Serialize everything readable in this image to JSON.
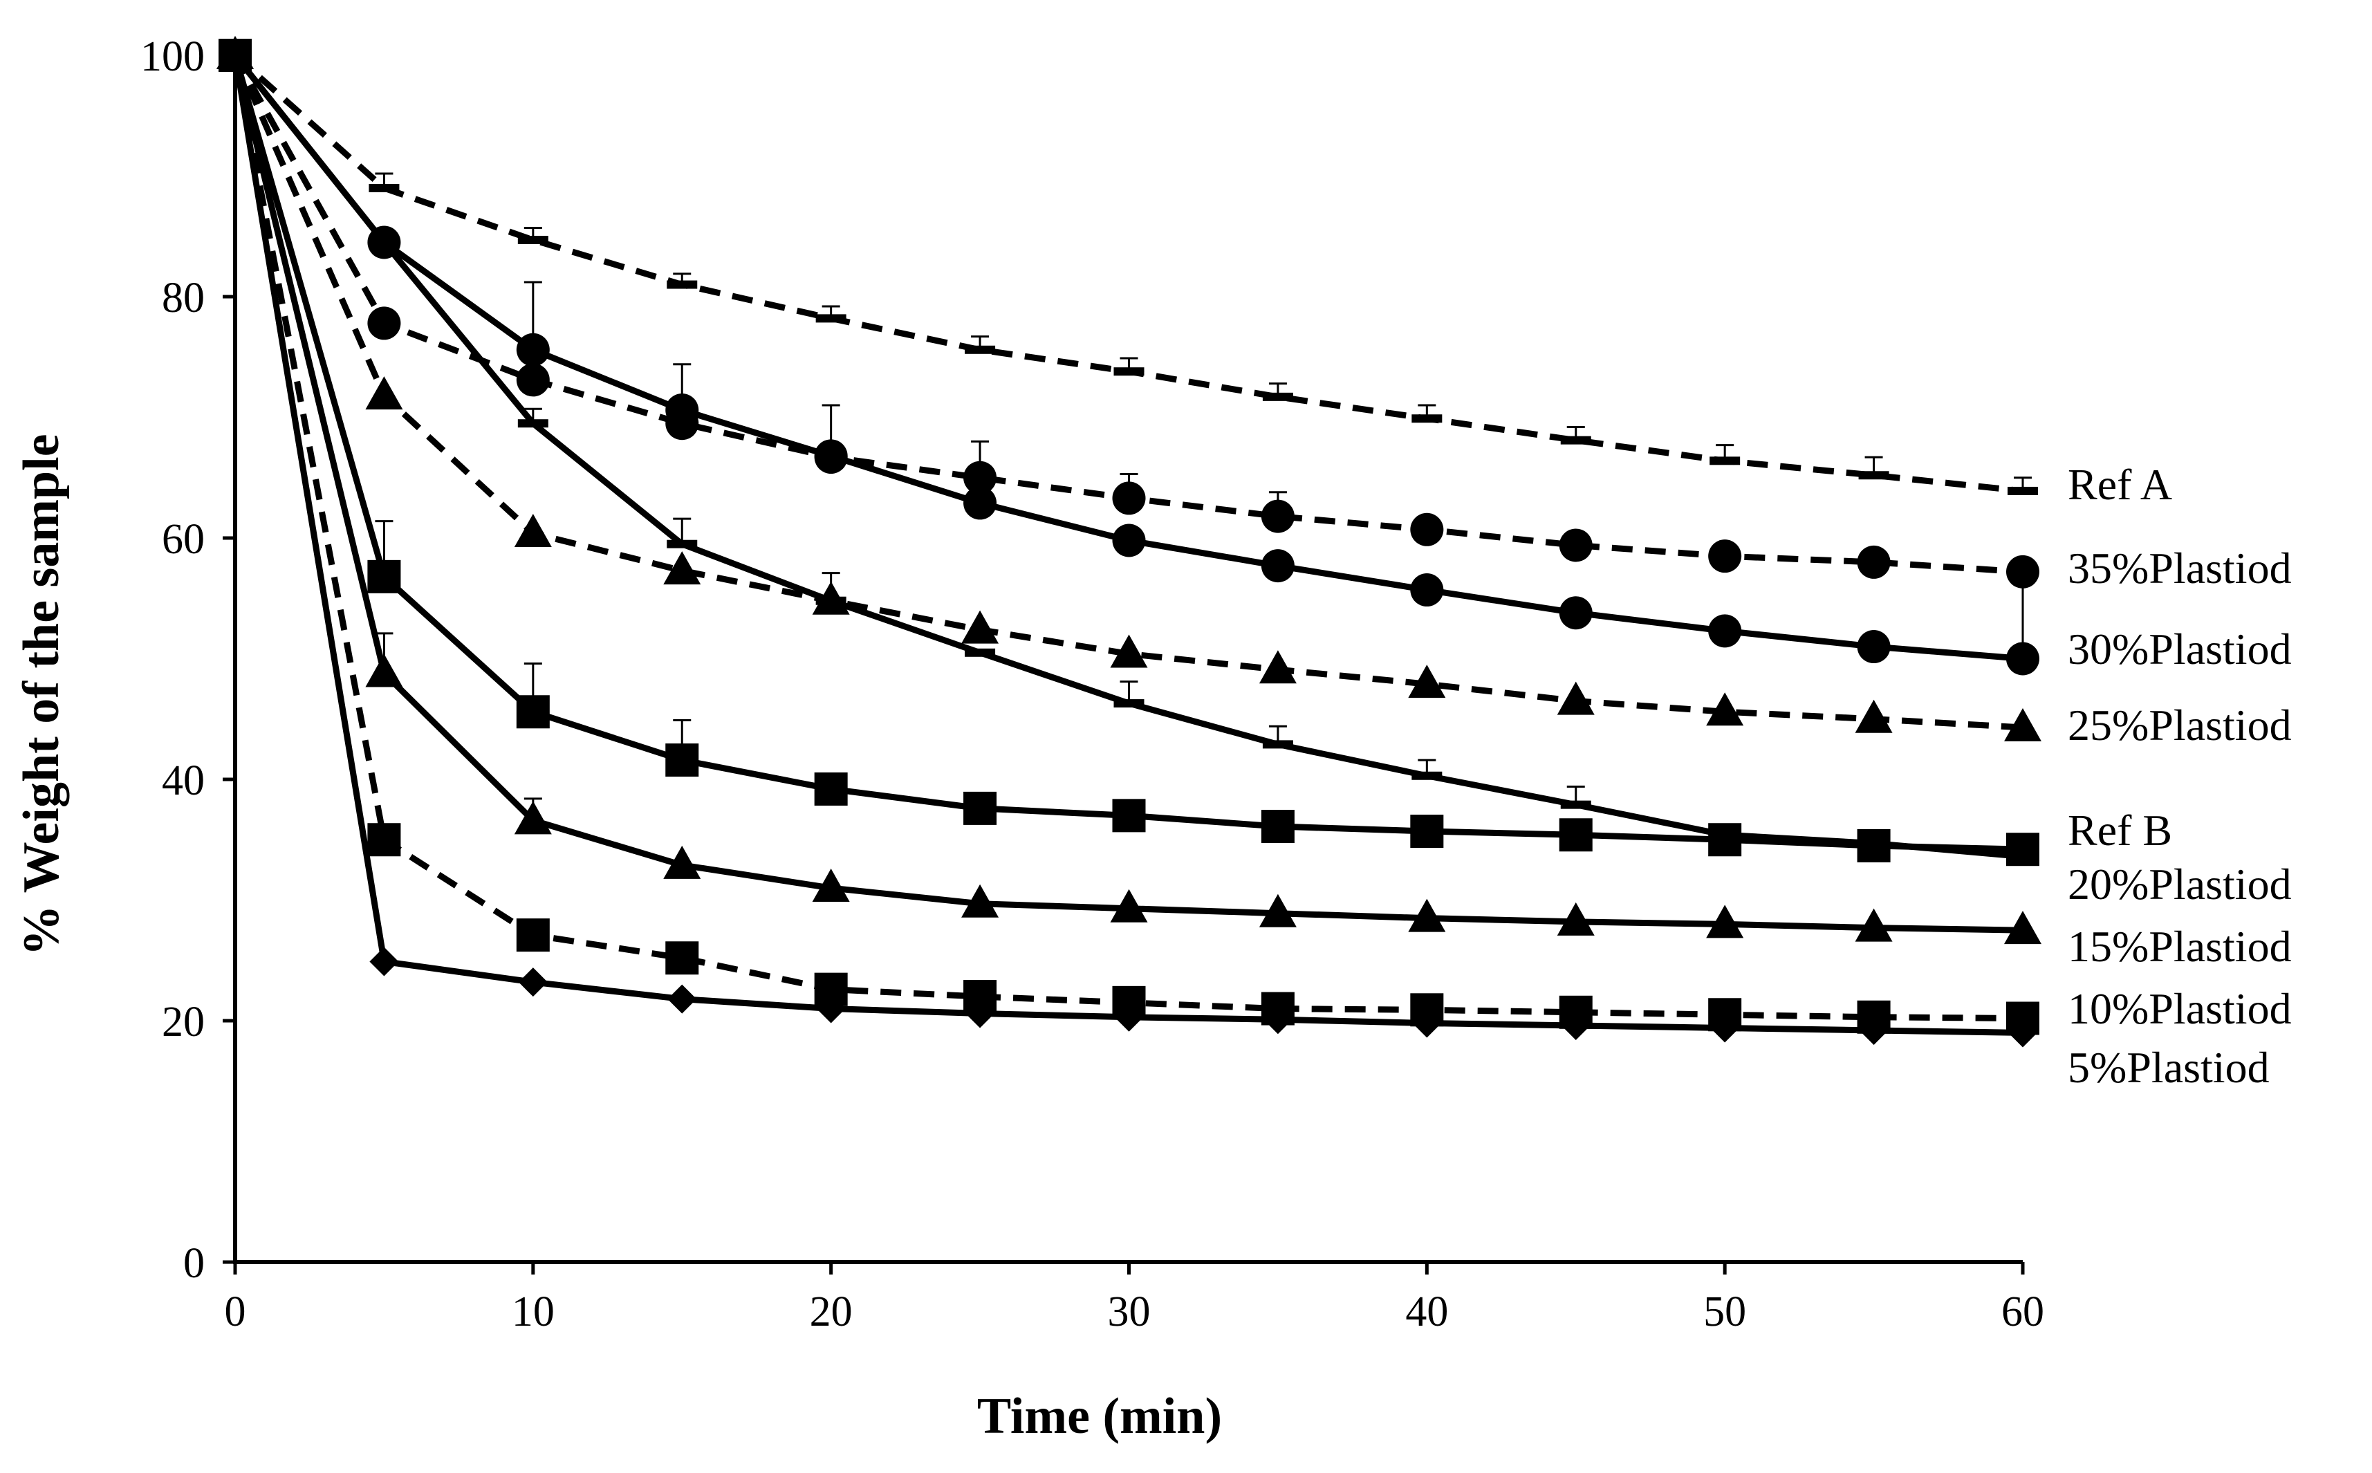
{
  "chart_data": {
    "type": "line",
    "title": "",
    "xlabel": "Time  (min)",
    "ylabel": "% Weight of the sample",
    "xlim": [
      0,
      60
    ],
    "ylim": [
      0,
      100
    ],
    "xticks": [
      0,
      10,
      20,
      30,
      40,
      50,
      60
    ],
    "yticks": [
      0,
      20,
      40,
      60,
      80,
      100
    ],
    "grid": false,
    "legend": "inline labels at right end of each line",
    "x": [
      0,
      5,
      10,
      15,
      20,
      25,
      30,
      35,
      40,
      45,
      50,
      55,
      60
    ],
    "series": [
      {
        "name": "Ref A",
        "label": "Ref A",
        "line_style": "dashed",
        "marker": "dash",
        "values": [
          100,
          89,
          84.7,
          81,
          78.2,
          75.6,
          73.8,
          71.7,
          69.9,
          68.1,
          66.4,
          65.2,
          63.9
        ],
        "errors": [
          0,
          1.2,
          1,
          0.9,
          1,
          1.1,
          1.1,
          1.1,
          1.1,
          1.1,
          1.3,
          1.5,
          1.1
        ]
      },
      {
        "name": "35%Plastiod",
        "label": "35%Plastiod",
        "line_style": "dashed",
        "marker": "circle",
        "values": [
          100,
          77.8,
          73.1,
          69.5,
          66.7,
          65,
          63.3,
          61.8,
          60.7,
          59.4,
          58.5,
          58,
          57.2
        ],
        "errors": [
          0,
          0,
          0,
          0,
          0,
          3,
          2,
          2,
          0,
          0,
          0,
          0,
          0
        ]
      },
      {
        "name": "30%Plastiod",
        "label": "30%Plastiod",
        "line_style": "solid",
        "marker": "circle",
        "values": [
          100,
          84.5,
          75.6,
          70.6,
          66.8,
          62.9,
          59.8,
          57.7,
          55.7,
          53.8,
          52.3,
          51,
          50
        ],
        "errors": [
          0,
          0,
          5.6,
          3.8,
          4.2,
          0,
          0,
          0,
          0,
          0,
          0,
          0,
          7.2
        ]
      },
      {
        "name": "Ref B",
        "label": "Ref B",
        "line_style": "solid",
        "marker": "dash",
        "values": [
          100,
          84.5,
          69.5,
          59.5,
          54.8,
          50.5,
          46.3,
          42.9,
          40.3,
          37.9,
          35.4,
          34.7,
          33.6
        ],
        "errors": [
          0,
          0,
          1.2,
          2.1,
          2.3,
          0,
          1.8,
          1.5,
          1.3,
          1.5,
          0,
          0,
          0
        ]
      },
      {
        "name": "25%Plastiod",
        "label": "25%Plastiod",
        "line_style": "dashed",
        "marker": "triangle",
        "values": [
          100,
          71.8,
          60.4,
          57.3,
          54.8,
          52.4,
          50.4,
          49.1,
          47.9,
          46.5,
          45.6,
          45,
          44.3
        ],
        "errors": [
          0,
          0,
          0,
          0,
          0,
          0,
          0,
          0,
          0,
          0,
          0,
          0,
          0
        ]
      },
      {
        "name": "20%Plastiod",
        "label": "20%Plastiod",
        "line_style": "solid",
        "marker": "square",
        "values": [
          100,
          56.8,
          45.6,
          41.6,
          39.2,
          37.6,
          37,
          36.1,
          35.7,
          35.4,
          35,
          34.5,
          34.2
        ],
        "errors": [
          0,
          4.6,
          4,
          3.3,
          0,
          0,
          0,
          0,
          0,
          0,
          0,
          0,
          0
        ]
      },
      {
        "name": "15%Plastiod",
        "label": "15%Plastiod",
        "line_style": "solid",
        "marker": "triangle",
        "values": [
          100,
          48.8,
          36.6,
          32.9,
          31,
          29.7,
          29.3,
          28.9,
          28.5,
          28.2,
          28,
          27.7,
          27.5
        ],
        "errors": [
          0,
          3.3,
          1.8,
          0,
          0,
          0,
          0,
          0,
          0,
          0,
          0,
          0,
          0
        ]
      },
      {
        "name": "10%Plastiod",
        "label": "10%Plastiod",
        "line_style": "dashed",
        "marker": "square",
        "values": [
          100,
          35,
          27.1,
          25.2,
          22.6,
          22,
          21.5,
          21,
          20.9,
          20.7,
          20.5,
          20.3,
          20.2
        ],
        "errors": [
          0,
          0,
          0,
          0,
          0,
          0,
          0,
          0,
          0,
          0,
          0,
          0,
          0
        ]
      },
      {
        "name": "5%Plastiod",
        "label": "5%Plastiod",
        "line_style": "solid",
        "marker": "diamond",
        "values": [
          100,
          24.9,
          23.2,
          21.8,
          21,
          20.6,
          20.3,
          20.1,
          19.8,
          19.6,
          19.4,
          19.2,
          19
        ],
        "errors": [
          0,
          0,
          0,
          0,
          0,
          0,
          0,
          0,
          0,
          0,
          0,
          0,
          0
        ]
      }
    ]
  },
  "series_label_order": [
    "Ref A",
    "35%Plastiod",
    "30%Plastiod",
    "25%Plastiod",
    "Ref B",
    "20%Plastiod",
    "15%Plastiod",
    "10%Plastiod",
    "5%Plastiod"
  ]
}
